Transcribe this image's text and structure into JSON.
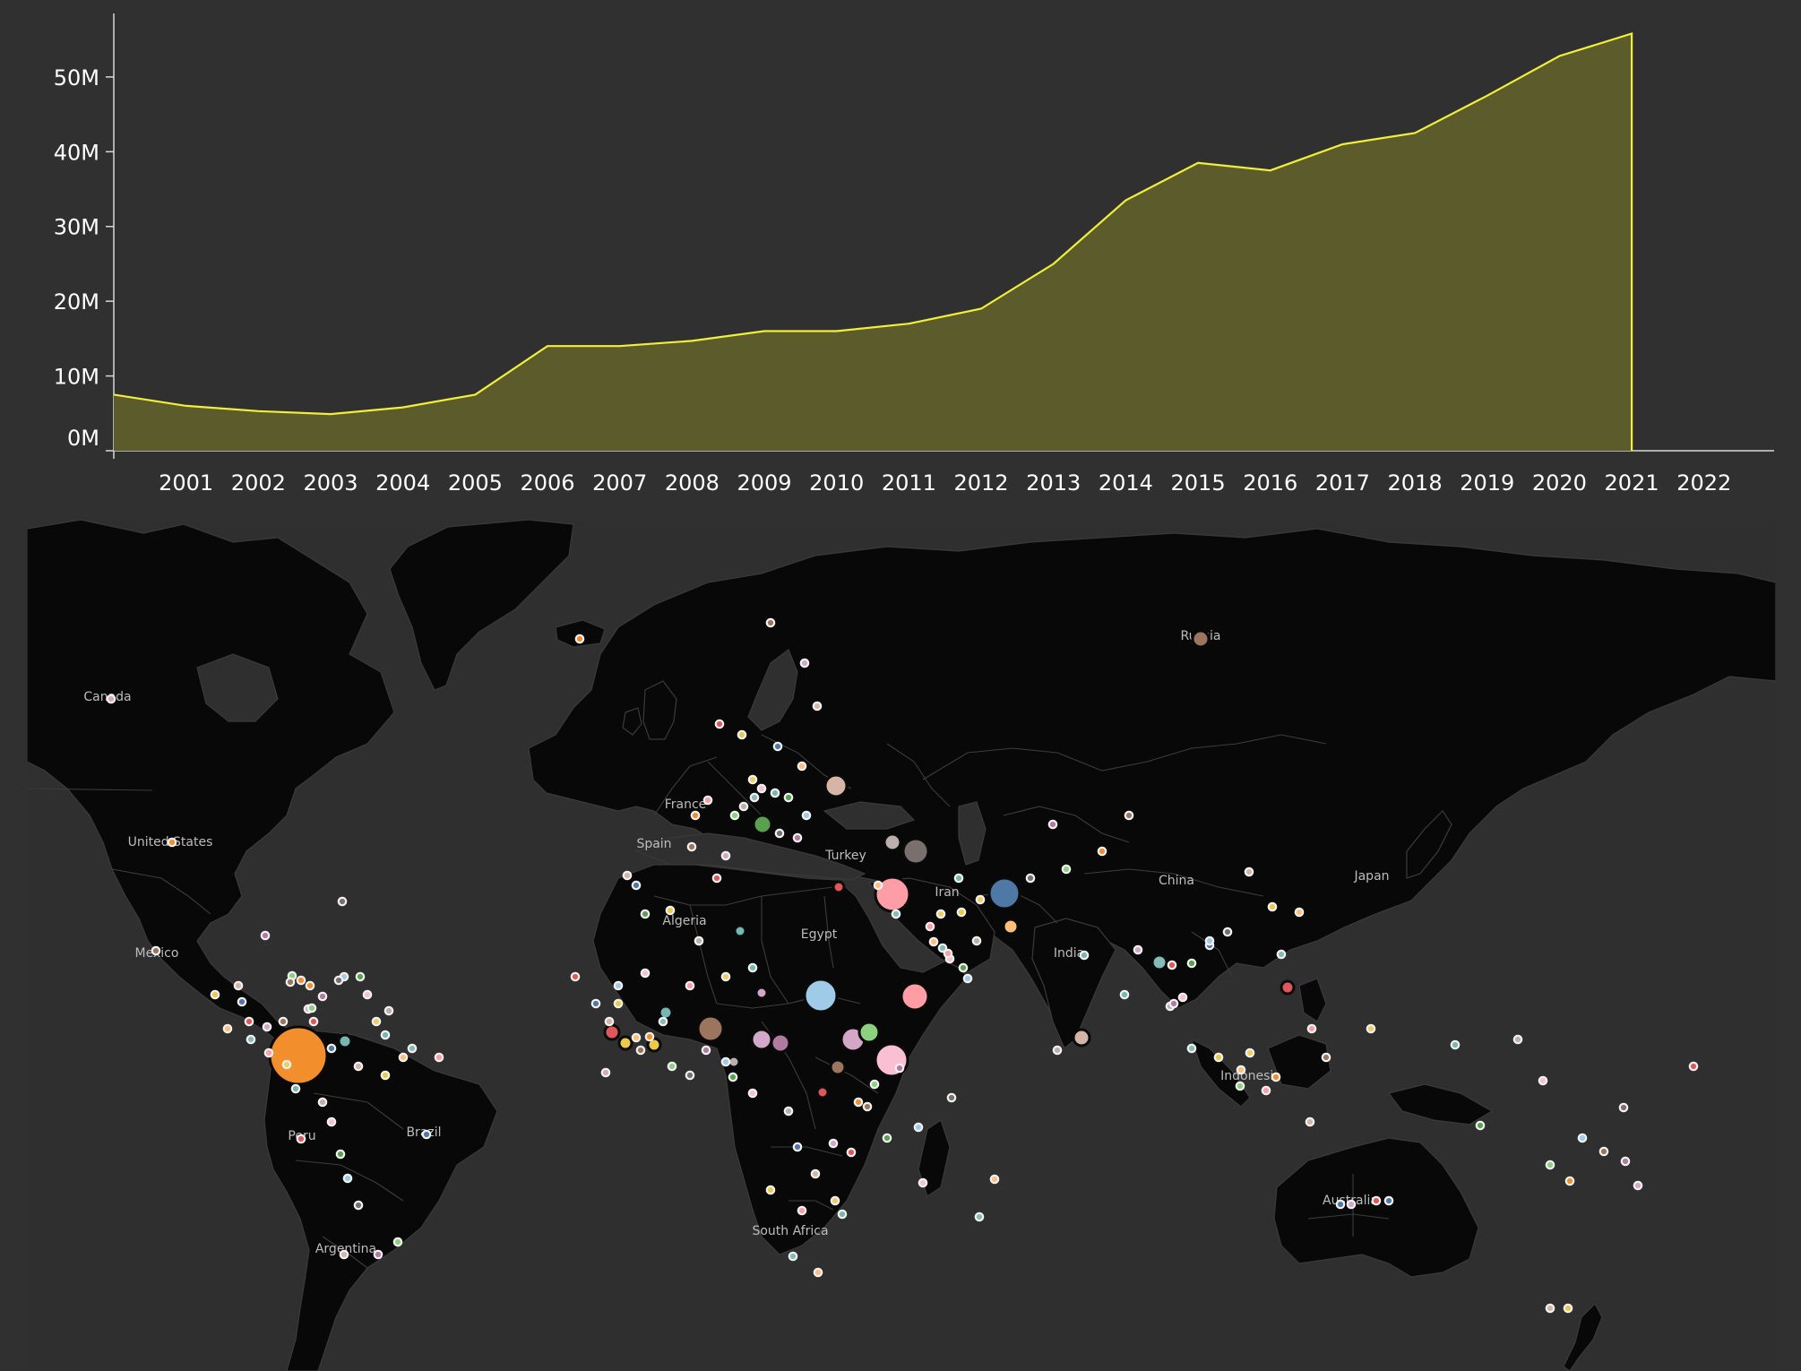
{
  "chart_data": [
    {
      "type": "area",
      "x": [
        2000,
        2001,
        2002,
        2003,
        2004,
        2005,
        2006,
        2007,
        2008,
        2009,
        2010,
        2011,
        2012,
        2013,
        2014,
        2015,
        2016,
        2017,
        2018,
        2019,
        2020,
        2021
      ],
      "y": [
        7.5,
        6.0,
        5.3,
        4.9,
        5.8,
        7.5,
        14.0,
        14.0,
        14.7,
        16.0,
        16.0,
        17.0,
        19.0,
        25.0,
        33.5,
        38.5,
        37.5,
        41.0,
        42.5,
        47.5,
        52.8,
        55.8
      ],
      "x_ticks": [
        "2001",
        "2002",
        "2003",
        "2004",
        "2005",
        "2006",
        "2007",
        "2008",
        "2009",
        "2010",
        "2011",
        "2012",
        "2013",
        "2014",
        "2015",
        "2016",
        "2017",
        "2018",
        "2019",
        "2020",
        "2021",
        "2022"
      ],
      "y_ticks": [
        "0M",
        "10M",
        "20M",
        "30M",
        "40M",
        "50M"
      ],
      "y_unit": "M",
      "xlim": [
        2000,
        2022.97
      ],
      "ylim": [
        0,
        58.5
      ],
      "line_color": "#f1ee3c",
      "fill_color": "#5c5b2b",
      "grid": false,
      "legend": "none"
    },
    {
      "type": "bubble-map",
      "country_labels": [
        "Russia",
        "Canada",
        "United States",
        "Mexico",
        "Peru",
        "Brazil",
        "Argentina",
        "France",
        "Spain",
        "Algeria",
        "Egypt",
        "Turkey",
        "Iran",
        "China",
        "Japan",
        "India",
        "Indonesia",
        "Australia",
        "South Africa"
      ],
      "bubble_colors": [
        "#f28e2b",
        "#76b7b2",
        "#e15759",
        "#59a14f",
        "#edc948",
        "#b07aa1",
        "#ff9da7",
        "#9c755f",
        "#bab0ac",
        "#4e79a7",
        "#a0cbe8",
        "#ffbe7d",
        "#8cd17d",
        "#f1ce63",
        "#d4a6c8",
        "#fabfd2",
        "#d7b5a6",
        "#79706e",
        "#86bcb6"
      ]
    }
  ]
}
